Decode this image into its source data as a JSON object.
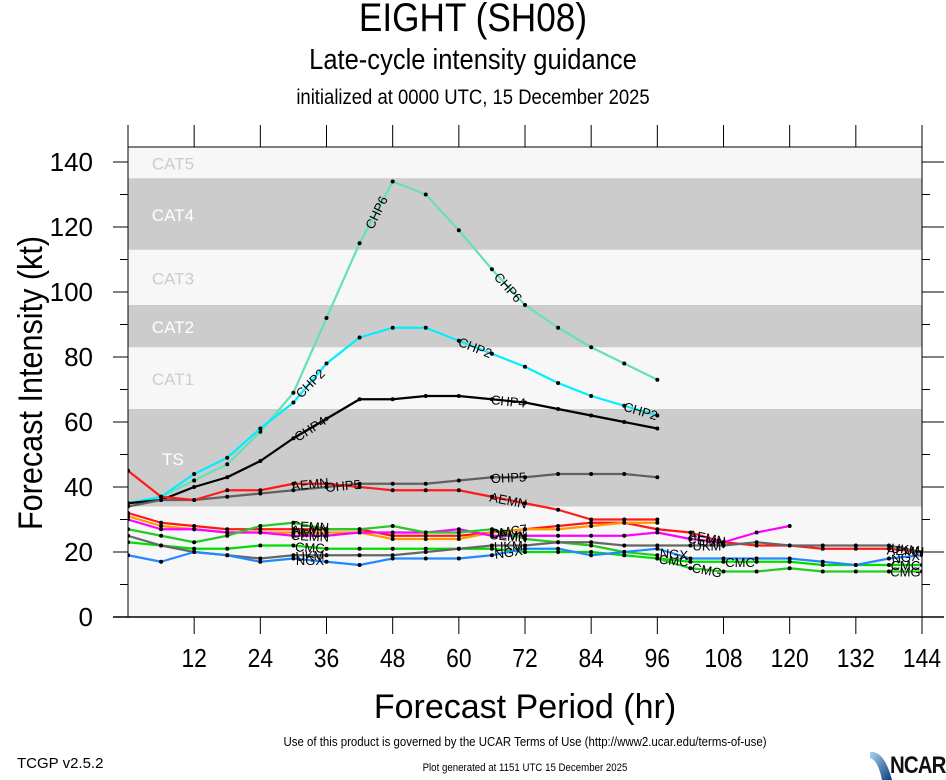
{
  "header": {
    "title": "EIGHT (SH08)",
    "subtitle": "Late-cycle intensity guidance",
    "init": "initialized at 0000 UTC, 15 December 2025"
  },
  "footer": {
    "version": "TCGP v2.5.2",
    "terms": "Use of this product is governed by the UCAR Terms of Use (http://www2.ucar.edu/terms-of-use)",
    "generated": "Plot generated at 1151 UTC   15 December 2025",
    "logo": "NCAR"
  },
  "chart_data": {
    "type": "line",
    "title": "EIGHT (SH08)",
    "xlabel": "Forecast Period (hr)",
    "ylabel": "Forecast Intensity (kt)",
    "xlim": [
      0,
      144
    ],
    "ylim": [
      0,
      145
    ],
    "xticks": [
      12,
      24,
      36,
      48,
      60,
      72,
      84,
      96,
      108,
      120,
      132,
      144
    ],
    "yticks": [
      0,
      20,
      40,
      60,
      80,
      100,
      120,
      140
    ],
    "bands": [
      {
        "label": "TS",
        "from": 34,
        "to": 64,
        "shaded": true
      },
      {
        "label": "CAT1",
        "from": 64,
        "to": 83,
        "shaded": false
      },
      {
        "label": "CAT2",
        "from": 83,
        "to": 96,
        "shaded": true
      },
      {
        "label": "CAT3",
        "from": 96,
        "to": 113,
        "shaded": false
      },
      {
        "label": "CAT4",
        "from": 113,
        "to": 135,
        "shaded": true
      },
      {
        "label": "CAT5",
        "from": 135,
        "to": 145,
        "shaded": false
      }
    ],
    "series": [
      {
        "name": "CHP6",
        "color": "#66e0b8",
        "x": [
          0,
          6,
          12,
          18,
          24,
          30,
          36,
          42,
          48,
          54,
          60,
          66,
          72,
          78,
          84,
          90,
          96
        ],
        "values": [
          35,
          37,
          42,
          47,
          57,
          69,
          92,
          115,
          134,
          130,
          119,
          107,
          96,
          89,
          83,
          78,
          73
        ],
        "labels_at": [
          42,
          66
        ]
      },
      {
        "name": "CHP2",
        "color": "#00eeff",
        "x": [
          0,
          6,
          12,
          18,
          24,
          30,
          36,
          42,
          48,
          54,
          60,
          66,
          72,
          78,
          84,
          90,
          96
        ],
        "values": [
          35,
          37,
          44,
          49,
          58,
          66,
          78,
          86,
          89,
          89,
          85,
          81,
          77,
          72,
          68,
          65,
          62
        ],
        "labels_at": [
          30,
          60,
          90
        ]
      },
      {
        "name": "CHP4",
        "color": "#000000",
        "x": [
          0,
          6,
          12,
          18,
          24,
          30,
          36,
          42,
          48,
          54,
          60,
          66,
          72,
          78,
          84,
          90,
          96
        ],
        "values": [
          35,
          36,
          40,
          43,
          48,
          55,
          61,
          67,
          67,
          68,
          68,
          67,
          66,
          64,
          62,
          60,
          58
        ],
        "labels_at": [
          30,
          66
        ]
      },
      {
        "name": "OHP5",
        "color": "#606060",
        "x": [
          0,
          6,
          12,
          18,
          24,
          30,
          36,
          42,
          48,
          54,
          60,
          66,
          72,
          78,
          84,
          90,
          96
        ],
        "values": [
          34,
          36,
          36,
          37,
          38,
          39,
          40,
          41,
          41,
          41,
          42,
          43,
          43,
          44,
          44,
          44,
          43
        ],
        "labels_at": [
          36,
          66
        ]
      },
      {
        "name": "AEMN",
        "color": "#ff1a1a",
        "x": [
          0,
          6,
          12,
          18,
          24,
          30,
          36,
          42,
          48,
          54,
          60,
          66,
          72,
          78,
          84,
          90,
          96
        ],
        "values": [
          45,
          37,
          36,
          39,
          39,
          41,
          41,
          40,
          39,
          39,
          39,
          37,
          35,
          33,
          30,
          30,
          30
        ],
        "labels_at": [
          30,
          66
        ]
      },
      {
        "name": "AEMN-low",
        "color": "#ff1a1a",
        "x": [
          0,
          6,
          12,
          18,
          24,
          30,
          36,
          42,
          48,
          54,
          60,
          66,
          72,
          78,
          84,
          90,
          96,
          102,
          108,
          114,
          120,
          126,
          132,
          138,
          144
        ],
        "values": [
          32,
          29,
          28,
          27,
          27,
          27,
          27,
          27,
          25,
          25,
          25,
          26,
          27,
          28,
          29,
          29,
          27,
          26,
          23,
          22,
          22,
          21,
          21,
          21,
          20
        ],
        "labels_at": [
          30,
          102,
          138
        ]
      },
      {
        "name": "OMC7",
        "color": "#ff9900",
        "x": [
          0,
          6,
          12,
          18,
          24,
          30,
          36,
          42,
          48,
          54,
          60,
          66,
          72,
          78,
          84,
          90,
          96
        ],
        "values": [
          31,
          28,
          27,
          26,
          26,
          26,
          26,
          26,
          24,
          24,
          24,
          26,
          27,
          27,
          28,
          29,
          29
        ],
        "labels_at": [
          30,
          66
        ]
      },
      {
        "name": "CEMN-pink",
        "color": "#ff00ff",
        "x": [
          0,
          6,
          12,
          18,
          24,
          30,
          36,
          42,
          48,
          54,
          60,
          66,
          72,
          78,
          84,
          90,
          96,
          102,
          108,
          114,
          120
        ],
        "values": [
          30,
          27,
          27,
          26,
          26,
          25,
          25,
          26,
          26,
          26,
          27,
          25,
          25,
          25,
          25,
          25,
          26,
          24,
          23,
          26,
          28
        ],
        "labels_at": [
          30,
          66,
          102
        ]
      },
      {
        "name": "CEMN",
        "color": "#22cc22",
        "x": [
          0,
          6,
          12,
          18,
          24,
          30,
          36,
          42,
          48,
          54,
          60,
          66,
          72,
          78,
          84,
          90,
          96
        ],
        "values": [
          27,
          25,
          23,
          25,
          28,
          29,
          27,
          27,
          28,
          26,
          26,
          27,
          24,
          23,
          22,
          20,
          19
        ],
        "labels_at": [
          30,
          66
        ]
      },
      {
        "name": "CMC",
        "color": "#00dd00",
        "x": [
          0,
          6,
          12,
          18,
          24,
          30,
          36,
          42,
          48,
          54,
          60,
          66,
          72,
          78,
          84,
          90,
          96,
          102,
          108,
          114,
          120,
          126,
          132,
          138,
          144
        ],
        "values": [
          23,
          22,
          21,
          21,
          22,
          22,
          21,
          21,
          21,
          21,
          21,
          21,
          20,
          20,
          20,
          19,
          18,
          17,
          17,
          17,
          17,
          16,
          16,
          16,
          16
        ],
        "labels_at": [
          30,
          96,
          108,
          138
        ]
      },
      {
        "name": "UKM",
        "color": "#666666",
        "x": [
          0,
          6,
          12,
          18,
          24,
          30,
          36,
          42,
          48,
          54,
          60,
          66,
          72,
          78,
          84,
          90,
          96,
          102,
          108,
          114,
          120,
          126,
          132,
          138,
          144
        ],
        "values": [
          25,
          22,
          20,
          19,
          18,
          19,
          19,
          19,
          19,
          20,
          21,
          22,
          22,
          23,
          23,
          22,
          22,
          22,
          22,
          23,
          22,
          22,
          22,
          22,
          20
        ],
        "labels_at": [
          30,
          66,
          102,
          138
        ]
      },
      {
        "name": "NGX",
        "color": "#2288ff",
        "x": [
          0,
          6,
          12,
          18,
          24,
          30,
          36,
          42,
          48,
          54,
          60,
          66,
          72,
          78,
          84,
          90,
          96,
          102,
          108,
          114,
          120,
          126,
          132,
          138,
          144
        ],
        "values": [
          19,
          17,
          20,
          19,
          17,
          18,
          17,
          16,
          18,
          18,
          18,
          19,
          21,
          21,
          19,
          20,
          21,
          18,
          18,
          18,
          18,
          17,
          16,
          18,
          19
        ],
        "labels_at": [
          30,
          66,
          96,
          138
        ]
      },
      {
        "name": "CMG",
        "color": "#22cc22",
        "x": [
          96,
          102,
          108,
          114,
          120,
          126,
          132,
          138,
          144
        ],
        "values": [
          18,
          15,
          14,
          14,
          15,
          14,
          14,
          14,
          14
        ],
        "labels_at": [
          102,
          138
        ]
      }
    ]
  }
}
